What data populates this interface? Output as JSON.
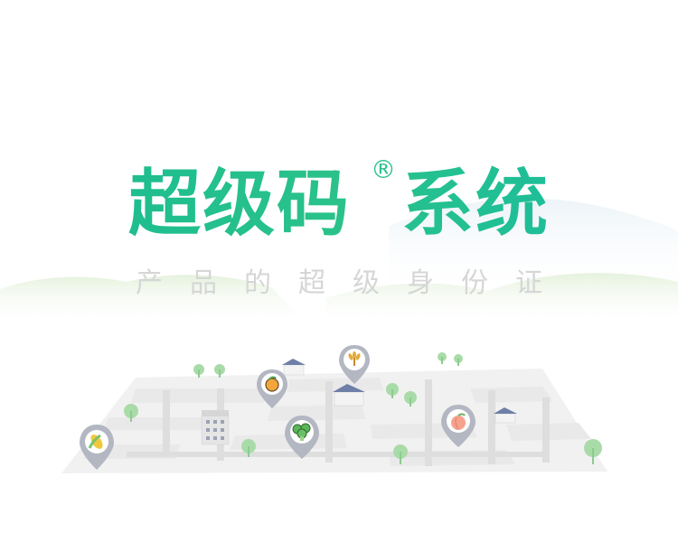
{
  "brand": {
    "title_part1": "超级码",
    "registered_mark": "®",
    "title_part2": "系统",
    "subtitle": "产品的超级身份证"
  },
  "colors": {
    "title_green": "#22c18c",
    "subtitle_gray": "#d6d6d6",
    "hill_green": "#e3f1dc",
    "hill_blue": "#e6f0f5",
    "map_block": "#e6e6e6",
    "tree_green": "#9ed69f",
    "house_roof": "#6e7fa8",
    "pin_gray": "#aeb3bf"
  },
  "map_pins": [
    {
      "icon": "corn-icon"
    },
    {
      "icon": "orange-icon"
    },
    {
      "icon": "broccoli-icon"
    },
    {
      "icon": "wheat-icon"
    },
    {
      "icon": "peach-icon"
    }
  ]
}
